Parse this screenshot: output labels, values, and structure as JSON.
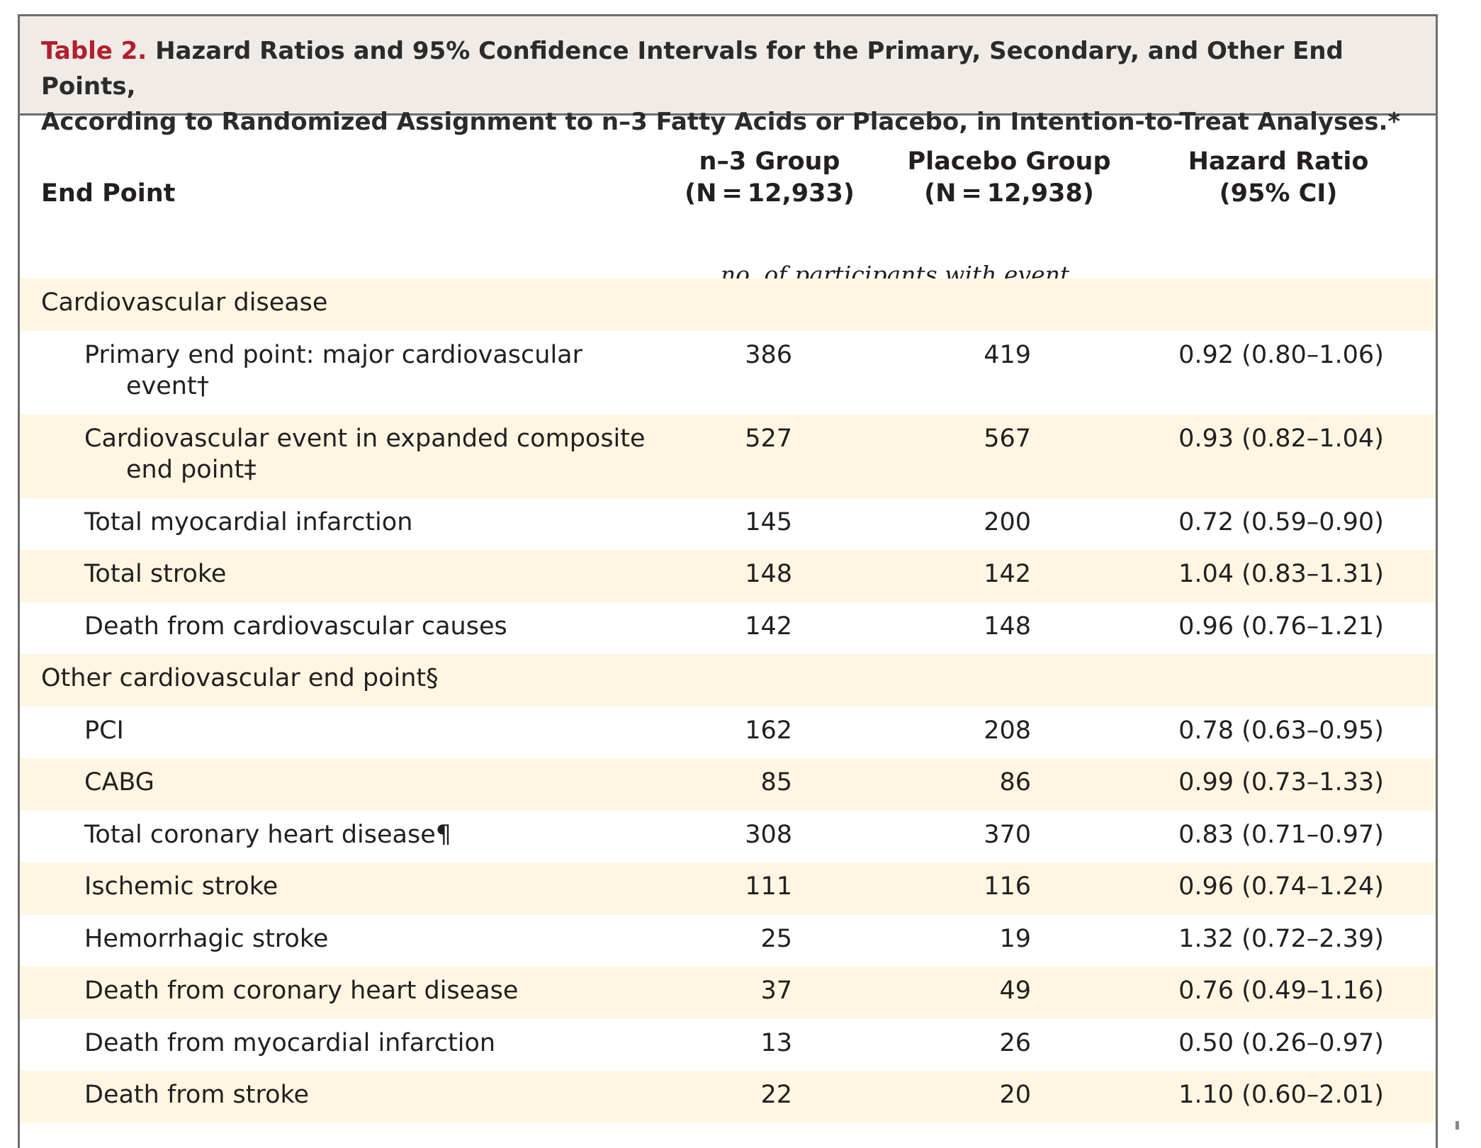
{
  "caption": {
    "label": "Table 2.",
    "line1": "Hazard Ratios and 95% Confidence Intervals for the Primary, Secondary, and Other End Points,",
    "line2": "According to Randomized Assignment to n–3 Fatty Acids or Placebo, in Intention-to-Treat Analyses.*"
  },
  "columns": {
    "end_point": "End Point",
    "n3_title": "n–3 Group",
    "n3_n": "(N = 12,933)",
    "placebo_title": "Placebo Group",
    "placebo_n": "(N = 12,938)",
    "hr_title": "Hazard Ratio",
    "hr_ci": "(95% CI)",
    "units": "no. of participants with event"
  },
  "rows": [
    {
      "name": "Cardiovascular disease"
    },
    {
      "name": "Primary end point: major cardiovascular",
      "name_cont": "event†",
      "n3": "386",
      "placebo": "419",
      "hr": "0.92 (0.80–1.06)"
    },
    {
      "name": "Cardiovascular event in expanded composite",
      "name_cont": "end point‡",
      "n3": "527",
      "placebo": "567",
      "hr": "0.93 (0.82–1.04)"
    },
    {
      "name": "Total myocardial infarction",
      "n3": "145",
      "placebo": "200",
      "hr": "0.72 (0.59–0.90)"
    },
    {
      "name": "Total stroke",
      "n3": "148",
      "placebo": "142",
      "hr": "1.04 (0.83–1.31)"
    },
    {
      "name": "Death from cardiovascular causes",
      "n3": "142",
      "placebo": "148",
      "hr": "0.96 (0.76–1.21)"
    },
    {
      "name": "Other cardiovascular end point§"
    },
    {
      "name": "PCI",
      "n3": "162",
      "placebo": "208",
      "hr": "0.78 (0.63–0.95)"
    },
    {
      "name": "CABG",
      "n3": "85",
      "placebo": "86",
      "hr": "0.99 (0.73–1.33)"
    },
    {
      "name": "Total coronary heart disease¶",
      "n3": "308",
      "placebo": "370",
      "hr": "0.83 (0.71–0.97)"
    },
    {
      "name": "Ischemic stroke",
      "n3": "111",
      "placebo": "116",
      "hr": "0.96 (0.74–1.24)"
    },
    {
      "name": "Hemorrhagic stroke",
      "n3": "25",
      "placebo": "19",
      "hr": "1.32 (0.72–2.39)"
    },
    {
      "name": "Death from coronary heart disease",
      "n3": "37",
      "placebo": "49",
      "hr": "0.76 (0.49–1.16)"
    },
    {
      "name": "Death from myocardial infarction",
      "n3": "13",
      "placebo": "26",
      "hr": "0.50 (0.26–0.97)"
    },
    {
      "name": "Death from stroke",
      "n3": "22",
      "placebo": "20",
      "hr": "1.10 (0.60–2.01)"
    }
  ],
  "colors": {
    "caption_label": "#b21f2d",
    "caption_background": "#f0ebe6",
    "row_tint": "#fef6e2",
    "border": "#6d6d6d"
  }
}
